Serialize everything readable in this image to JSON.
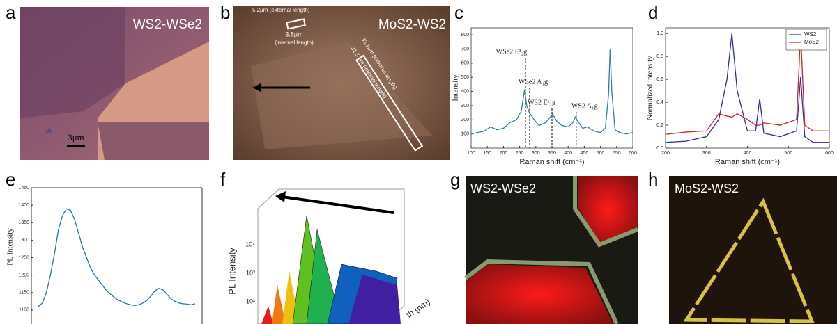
{
  "panels": [
    {
      "label": "a",
      "title": "WS2-WSe2",
      "scale_bar": "3μm"
    },
    {
      "label": "b",
      "title": "MoS2-WS2",
      "annotations": [
        "5.2μm (external length)",
        "3.8μm",
        "(internal length)",
        "33.1μm (external length)",
        "31.5 μm (internal length)"
      ]
    },
    {
      "label": "c",
      "chart": {
        "type": "line",
        "xlabel": "Raman shift (cm⁻¹)",
        "ylabel": "Intensity",
        "x": [
          100,
          120,
          140,
          160,
          180,
          200,
          220,
          240,
          255,
          265,
          272,
          280,
          295,
          310,
          330,
          345,
          352,
          365,
          380,
          400,
          415,
          422,
          430,
          445,
          460,
          480,
          500,
          515,
          525,
          530,
          535,
          545,
          560,
          580,
          600
        ],
        "series": [
          {
            "color": "#2a7ab0",
            "values": [
              100,
              110,
              120,
              150,
              130,
              140,
              180,
              200,
              260,
              410,
              300,
              250,
              200,
              160,
              180,
              220,
              240,
              190,
              160,
              150,
              180,
              220,
              190,
              140,
              150,
              120,
              110,
              140,
              380,
              700,
              400,
              130,
              110,
              100,
              110
            ]
          }
        ],
        "xlim": [
          100,
          600
        ],
        "ylim": [
          0,
          850
        ],
        "xticks": [
          100,
          150,
          200,
          250,
          300,
          350,
          400,
          450,
          500,
          550,
          600
        ],
        "yticks": [
          100,
          200,
          300,
          400,
          500,
          600,
          700,
          800
        ],
        "peaks": [
          {
            "x": 268,
            "label": "WSe2 E¹₂g"
          },
          {
            "x": 281,
            "label": "WSe2 A₁g"
          },
          {
            "x": 350,
            "label": "WS2 E¹₂g"
          },
          {
            "x": 425,
            "label": "WS2 A₁g"
          }
        ]
      }
    },
    {
      "label": "d",
      "chart": {
        "type": "line",
        "xlabel": "Raman shift (cm⁻¹)",
        "ylabel": "Normalized intensity",
        "x": [
          200,
          250,
          300,
          330,
          350,
          362,
          375,
          400,
          420,
          430,
          440,
          480,
          520,
          530,
          540,
          560,
          600
        ],
        "series": [
          {
            "name": "WS2",
            "color": "#2a2aa8",
            "values": [
              0.05,
              0.06,
              0.1,
              0.25,
              0.6,
              1.0,
              0.5,
              0.15,
              0.15,
              0.43,
              0.13,
              0.1,
              0.15,
              0.62,
              0.1,
              0.05,
              0.05
            ]
          },
          {
            "name": "MoS2",
            "color": "#cc2222",
            "values": [
              0.12,
              0.14,
              0.15,
              0.3,
              0.28,
              0.27,
              0.3,
              0.25,
              0.2,
              0.2,
              0.22,
              0.2,
              0.25,
              1.0,
              0.2,
              0.15,
              0.15
            ]
          }
        ],
        "xlim": [
          200,
          600
        ],
        "ylim": [
          0,
          1.05
        ],
        "xticks": [
          200,
          300,
          400,
          500,
          600
        ],
        "yticks": [
          {
            "value": 0,
            "label": "0.0"
          },
          {
            "value": 0.2,
            "label": "0.2"
          },
          {
            "value": 0.4,
            "label": "0.4"
          },
          {
            "value": 0.6,
            "label": "0.6"
          },
          {
            "value": 0.8,
            "label": "0.8"
          },
          {
            "value": 1,
            "label": "1.0"
          }
        ],
        "legend": "upper right"
      }
    },
    {
      "label": "e",
      "chart": {
        "type": "line",
        "ylabel": "PL Intensity",
        "series": [
          {
            "color": "#1f77b4",
            "values": [
              1110,
              1120,
              1150,
              1200,
              1260,
              1330,
              1370,
              1390,
              1385,
              1360,
              1320,
              1280,
              1250,
              1220,
              1200,
              1185,
              1170,
              1155,
              1145,
              1135,
              1128,
              1122,
              1118,
              1115,
              1113,
              1115,
              1120,
              1128,
              1140,
              1155,
              1162,
              1158,
              1145,
              1132,
              1125,
              1120,
              1118,
              1117,
              1115,
              1118
            ]
          }
        ],
        "ylim": [
          1060,
          1450
        ],
        "yticks": [
          1100,
          1150,
          1200,
          1250,
          1300,
          1350,
          1400,
          1450
        ]
      }
    },
    {
      "label": "f",
      "ylabel": "PL Intensity",
      "yticks": [
        "10⁴",
        "10³",
        "10²"
      ],
      "xlabel": "th (nm)"
    },
    {
      "label": "g",
      "title": "WS2-WSe2"
    },
    {
      "label": "h",
      "title": "MoS2-WS2"
    }
  ]
}
